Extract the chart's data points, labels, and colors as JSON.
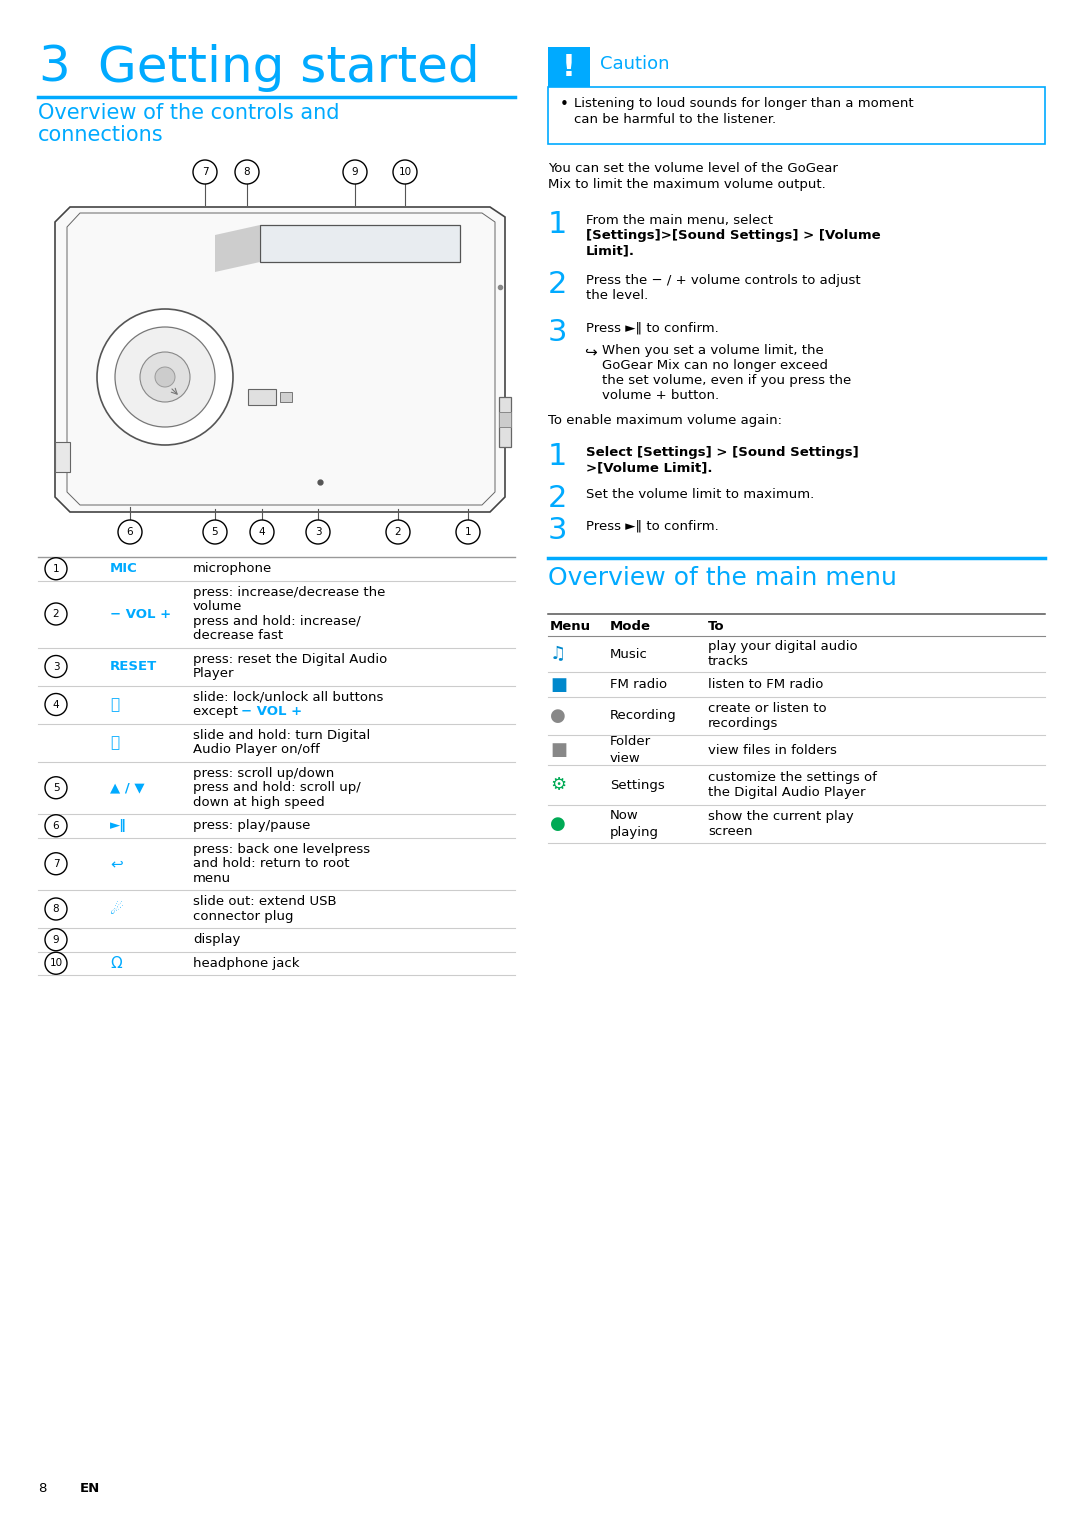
{
  "page_title_num": "3",
  "page_title_text": "Getting started",
  "section1_title": "Overview of the controls and\nconnections",
  "section2_title": "Overview of the main menu",
  "caution_title": "Caution",
  "caution_text1": "Listening to loud sounds for longer than a moment",
  "caution_text2": "can be harmful to the listener.",
  "vol_para": "You can set the volume level of the GoGear\nMix to limit the maximum volume output.",
  "footer_text": "8",
  "footer_en": "EN",
  "blue": "#00AAFF",
  "black": "#000000",
  "white": "#FFFFFF",
  "light_gray": "#CCCCCC",
  "mid_gray": "#888888",
  "controls_rows": [
    {
      "num": "1",
      "label": "MIC",
      "label_style": "blue_bold",
      "desc": [
        "microphone"
      ]
    },
    {
      "num": "2",
      "label": "− VOL +",
      "label_style": "blue_bold",
      "desc": [
        "press: increase/decrease the",
        "volume",
        "press and hold: increase/",
        "decrease fast"
      ]
    },
    {
      "num": "3",
      "label": "RESET",
      "label_style": "blue_bold",
      "desc": [
        "press: reset the Digital Audio",
        "Player"
      ]
    },
    {
      "num": "4",
      "label": "🔒",
      "label_style": "blue_icon",
      "desc": [
        "slide: lock/unlock all buttons",
        "except − VOL +"
      ]
    },
    {
      "num": "",
      "label": "ⓘ",
      "label_style": "blue_circle",
      "desc": [
        "slide and hold: turn Digital",
        "Audio Player on/off"
      ]
    },
    {
      "num": "5",
      "label": "▲ / ▼",
      "label_style": "blue_bold",
      "desc": [
        "press: scroll up/down",
        "press and hold: scroll up/",
        "down at high speed"
      ]
    },
    {
      "num": "6",
      "label": "►‖",
      "label_style": "blue_bold",
      "desc": [
        "press: play/pause"
      ]
    },
    {
      "num": "7",
      "label": "↩",
      "label_style": "blue_icon",
      "desc": [
        "press: back one levelpress",
        "and hold: return to root",
        "menu"
      ]
    },
    {
      "num": "8",
      "label": "☄",
      "label_style": "blue_icon",
      "desc": [
        "slide out: extend USB",
        "connector plug"
      ]
    },
    {
      "num": "9",
      "label": "",
      "label_style": "none",
      "desc": [
        "display"
      ]
    },
    {
      "num": "10",
      "label": "Ω",
      "label_style": "blue_icon",
      "desc": [
        "headphone jack"
      ]
    }
  ],
  "menu_rows": [
    {
      "icon": "♫",
      "icon_color": "#0088CC",
      "mode": "Music",
      "to_lines": [
        "play your digital audio",
        "tracks"
      ]
    },
    {
      "icon": "■",
      "icon_color": "#0088CC",
      "mode": "FM radio",
      "to_lines": [
        "listen to FM radio"
      ]
    },
    {
      "icon": "●",
      "icon_color": "#888888",
      "mode": "Recording",
      "to_lines": [
        "create or listen to",
        "recordings"
      ]
    },
    {
      "icon": "■",
      "icon_color": "#888888",
      "mode": "Folder\nview",
      "to_lines": [
        "view files in folders"
      ]
    },
    {
      "icon": "⚙",
      "icon_color": "#00AA55",
      "mode": "Settings",
      "to_lines": [
        "customize the settings of",
        "the Digital Audio Player"
      ]
    },
    {
      "icon": "●",
      "icon_color": "#00AA55",
      "mode": "Now\nplaying",
      "to_lines": [
        "show the current play",
        "screen"
      ]
    }
  ]
}
